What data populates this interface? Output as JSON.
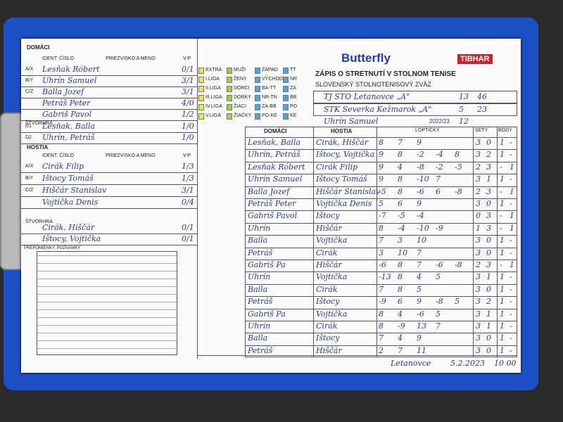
{
  "header": {
    "brand": "Butterfly",
    "brand2": "TIBHAR",
    "title": "ZÁPIS O STRETNUTÍ V STOLNOM TENISE",
    "subtitle": "SLOVENSKÝ STOLNOTENISOVÝ ZVÄZ"
  },
  "labels": {
    "home": "DOMÁCI",
    "guest": "HOSTIA",
    "id": "IDENT. ČÍSLO",
    "name": "PRIEZVISKO A MENO",
    "vp": "V:P",
    "doubles": "ŠTVORHRA",
    "balls": "LOPTIČKY",
    "sets": "SETY",
    "points": "BODY",
    "notes": "PREPOMIENKY, POZNÁMKY"
  },
  "home_team": {
    "name": "TJ STO Letanovce „A\"",
    "points": "13",
    "sets": "46"
  },
  "guest_team": {
    "name": "STK Severka Kežmarok „A\"",
    "points": "5",
    "sets": "23"
  },
  "referee": "Uhrín Samuel",
  "season": "2022/23",
  "round": "12",
  "home_players": [
    {
      "code": "A/X",
      "name": "Lesňak Róbert",
      "record": "0/1"
    },
    {
      "code": "B/Y",
      "name": "Uhrín Samuel",
      "record": "3/1"
    },
    {
      "code": "C/Z",
      "name": "Balla Jozef",
      "record": "3/1"
    },
    {
      "name": "Petráš Peter",
      "record": "4/0"
    },
    {
      "name": "Gabriš Pavol",
      "record": "1/2"
    }
  ],
  "home_doubles": [
    {
      "code": "D1",
      "name": "Lesňak, Balla",
      "record": "1/0"
    },
    {
      "code": "D2",
      "name": "Uhrín, Petráš",
      "record": "1/0"
    }
  ],
  "guest_players": [
    {
      "code": "A/X",
      "name": "Cirák Filip",
      "record": "1/3"
    },
    {
      "code": "B/Y",
      "name": "Ištocy Tomáš",
      "record": "1/3"
    },
    {
      "code": "C/Z",
      "name": "Hiščár Stanislav",
      "record": "3/1"
    },
    {
      "name": "Vojtička Denis",
      "record": "0/4"
    }
  ],
  "guest_doubles": [
    {
      "name": "Cirák, Hiščár",
      "record": "0/1"
    },
    {
      "name": "Ištocy, Vojtička",
      "record": "0/1"
    }
  ],
  "leagues": {
    "levels": [
      "EXTRA",
      "I.LIGA",
      "II.LIGA",
      "III.LIGA",
      "IV.LIGA",
      "V.LIGA"
    ],
    "categories": [
      "MUŽI",
      "ŽENY",
      "DORCI",
      "DORKY",
      "ŽIACI",
      "ŽIAČKY"
    ],
    "regions": [
      "ZÁPAD",
      "VÝCHOD",
      "BA-TT",
      "NR-TN",
      "ZA-BB",
      "PO-KE"
    ],
    "districts": [
      "TT",
      "NR",
      "ZA",
      "BB",
      "PO",
      "KE"
    ]
  },
  "matches": [
    {
      "home": "Lesňak, Balla",
      "guest": "Cirák, Hiščár",
      "balls": [
        8,
        7,
        9
      ],
      "sets": [
        "3",
        "0"
      ],
      "points": [
        "1",
        "-"
      ]
    },
    {
      "home": "Uhrín, Petráš",
      "guest": "Ištocy, Vojtička",
      "balls": [
        9,
        8,
        -2,
        -4,
        8
      ],
      "sets": [
        "3",
        "2"
      ],
      "points": [
        "1",
        "-"
      ]
    },
    {
      "home": "Lesňak Róbert",
      "guest": "Cirák Filip",
      "balls": [
        9,
        4,
        -8,
        -2,
        -5
      ],
      "sets": [
        "2",
        "3"
      ],
      "points": [
        "-",
        "1"
      ]
    },
    {
      "home": "Uhrín Samuel",
      "guest": "Ištocy Tomáš",
      "balls": [
        9,
        8,
        -10,
        7
      ],
      "sets": [
        "3",
        "1"
      ],
      "points": [
        "1",
        "-"
      ]
    },
    {
      "home": "Balla Jozef",
      "guest": "Hiščár Stanislav",
      "balls": [
        -5,
        8,
        -6,
        6,
        -8
      ],
      "sets": [
        "2",
        "3"
      ],
      "points": [
        "-",
        "1"
      ]
    },
    {
      "home": "Petráš Peter",
      "guest": "Vojtička Denis",
      "balls": [
        5,
        6,
        9
      ],
      "sets": [
        "3",
        "0"
      ],
      "points": [
        "1",
        "-"
      ]
    },
    {
      "home": "Gabriš Pavol",
      "guest": "Ištocy",
      "balls": [
        -7,
        -5,
        -4
      ],
      "sets": [
        "0",
        "3"
      ],
      "points": [
        "-",
        "1"
      ]
    },
    {
      "home": "Uhrín",
      "guest": "Hiščár",
      "balls": [
        8,
        -4,
        -10,
        -9
      ],
      "sets": [
        "1",
        "3"
      ],
      "points": [
        "-",
        "1"
      ]
    },
    {
      "home": "Balla",
      "guest": "Vojtička",
      "balls": [
        7,
        3,
        10
      ],
      "sets": [
        "3",
        "0"
      ],
      "points": [
        "1",
        "-"
      ]
    },
    {
      "home": "Petráš",
      "guest": "Cirák",
      "balls": [
        3,
        10,
        7
      ],
      "sets": [
        "3",
        "0"
      ],
      "points": [
        "1",
        "-"
      ]
    },
    {
      "home": "Gabriš Pa",
      "guest": "Hiščár",
      "balls": [
        -6,
        8,
        7,
        -6,
        -8
      ],
      "sets": [
        "2",
        "3"
      ],
      "points": [
        "-",
        "1"
      ]
    },
    {
      "home": "Uhrín",
      "guest": "Vojtička",
      "balls": [
        -13,
        8,
        4,
        5
      ],
      "sets": [
        "3",
        "1"
      ],
      "points": [
        "1",
        "-"
      ]
    },
    {
      "home": "Balla",
      "guest": "Cirák",
      "balls": [
        7,
        8,
        5
      ],
      "sets": [
        "3",
        "0"
      ],
      "points": [
        "1",
        "-"
      ]
    },
    {
      "home": "Petráš",
      "guest": "Ištocy",
      "balls": [
        -9,
        6,
        9,
        -8,
        5
      ],
      "sets": [
        "3",
        "2"
      ],
      "points": [
        "1",
        "-"
      ]
    },
    {
      "home": "Gabriš Pa",
      "guest": "Vojtička",
      "balls": [
        8,
        4,
        -6,
        5
      ],
      "sets": [
        "3",
        "1"
      ],
      "points": [
        "1",
        "-"
      ]
    },
    {
      "home": "Uhrín",
      "guest": "Cirák",
      "balls": [
        8,
        -9,
        13,
        7
      ],
      "sets": [
        "3",
        "1"
      ],
      "points": [
        "1",
        "-"
      ]
    },
    {
      "home": "Balla",
      "guest": "Ištocy",
      "balls": [
        7,
        4,
        9
      ],
      "sets": [
        "3",
        "0"
      ],
      "points": [
        "1",
        "-"
      ]
    },
    {
      "home": "Petráš",
      "guest": "Hiščár",
      "balls": [
        2,
        7,
        11
      ],
      "sets": [
        "3",
        "0"
      ],
      "points": [
        "1",
        "-"
      ]
    }
  ],
  "footer": {
    "place": "Letanovce",
    "date": "5.2.2023",
    "time": "10 00"
  }
}
